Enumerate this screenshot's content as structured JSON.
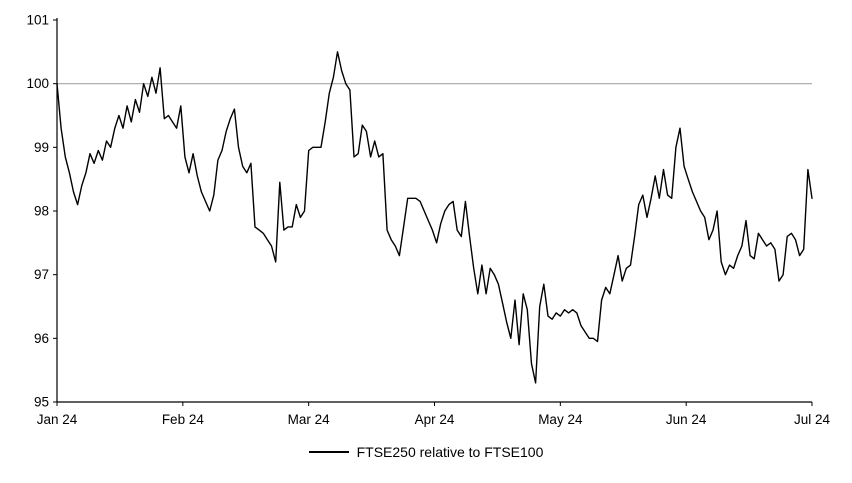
{
  "chart_data": {
    "type": "line",
    "title": "",
    "xlabel": "",
    "ylabel": "",
    "ylim": [
      95,
      101
    ],
    "y_ticks": [
      95,
      96,
      97,
      98,
      99,
      100,
      101
    ],
    "x_tick_labels": [
      "Jan 24",
      "Feb 24",
      "Mar 24",
      "Apr 24",
      "May 24",
      "Jun 24",
      "Jul 24"
    ],
    "grid": false,
    "legend_position": "bottom",
    "reference_line": {
      "value": 100,
      "color": "#a6a6a6"
    },
    "axis_color": "#000000",
    "series": [
      {
        "name": "FTSE250 relative to FTSE100",
        "color": "#000000",
        "values": [
          100.0,
          99.3,
          98.85,
          98.6,
          98.3,
          98.1,
          98.4,
          98.6,
          98.9,
          98.75,
          98.95,
          98.8,
          99.1,
          99.0,
          99.3,
          99.5,
          99.3,
          99.65,
          99.4,
          99.75,
          99.55,
          100.0,
          99.8,
          100.1,
          99.85,
          100.25,
          99.45,
          99.5,
          99.4,
          99.3,
          99.65,
          98.85,
          98.6,
          98.9,
          98.55,
          98.3,
          98.15,
          98.0,
          98.25,
          98.8,
          98.95,
          99.25,
          99.45,
          99.6,
          99.0,
          98.7,
          98.6,
          98.75,
          97.75,
          97.7,
          97.65,
          97.55,
          97.45,
          97.2,
          98.45,
          97.7,
          97.75,
          97.75,
          98.1,
          97.9,
          98.0,
          98.95,
          99.0,
          99.0,
          99.0,
          99.4,
          99.85,
          100.1,
          100.5,
          100.2,
          100.0,
          99.9,
          98.85,
          98.9,
          99.35,
          99.25,
          98.85,
          99.1,
          98.85,
          98.9,
          97.7,
          97.55,
          97.45,
          97.3,
          97.75,
          98.2,
          98.2,
          98.2,
          98.15,
          98.0,
          97.85,
          97.7,
          97.5,
          97.8,
          98.0,
          98.1,
          98.15,
          97.7,
          97.6,
          98.15,
          97.6,
          97.1,
          96.7,
          97.15,
          96.7,
          97.1,
          97.0,
          96.85,
          96.55,
          96.25,
          96.0,
          96.6,
          95.9,
          96.7,
          96.45,
          95.6,
          95.3,
          96.5,
          96.85,
          96.35,
          96.3,
          96.4,
          96.35,
          96.45,
          96.4,
          96.45,
          96.4,
          96.2,
          96.1,
          96.0,
          96.0,
          95.95,
          96.6,
          96.8,
          96.7,
          97.0,
          97.3,
          96.9,
          97.1,
          97.15,
          97.6,
          98.1,
          98.25,
          97.9,
          98.2,
          98.55,
          98.2,
          98.65,
          98.25,
          98.2,
          99.0,
          99.3,
          98.7,
          98.5,
          98.3,
          98.15,
          98.0,
          97.9,
          97.55,
          97.7,
          98.0,
          97.2,
          97.0,
          97.15,
          97.1,
          97.3,
          97.45,
          97.85,
          97.3,
          97.25,
          97.65,
          97.55,
          97.45,
          97.5,
          97.4,
          96.9,
          97.0,
          97.6,
          97.65,
          97.55,
          97.3,
          97.4,
          98.65,
          98.2
        ]
      }
    ]
  },
  "legend": {
    "label": "FTSE250 relative to FTSE100"
  }
}
